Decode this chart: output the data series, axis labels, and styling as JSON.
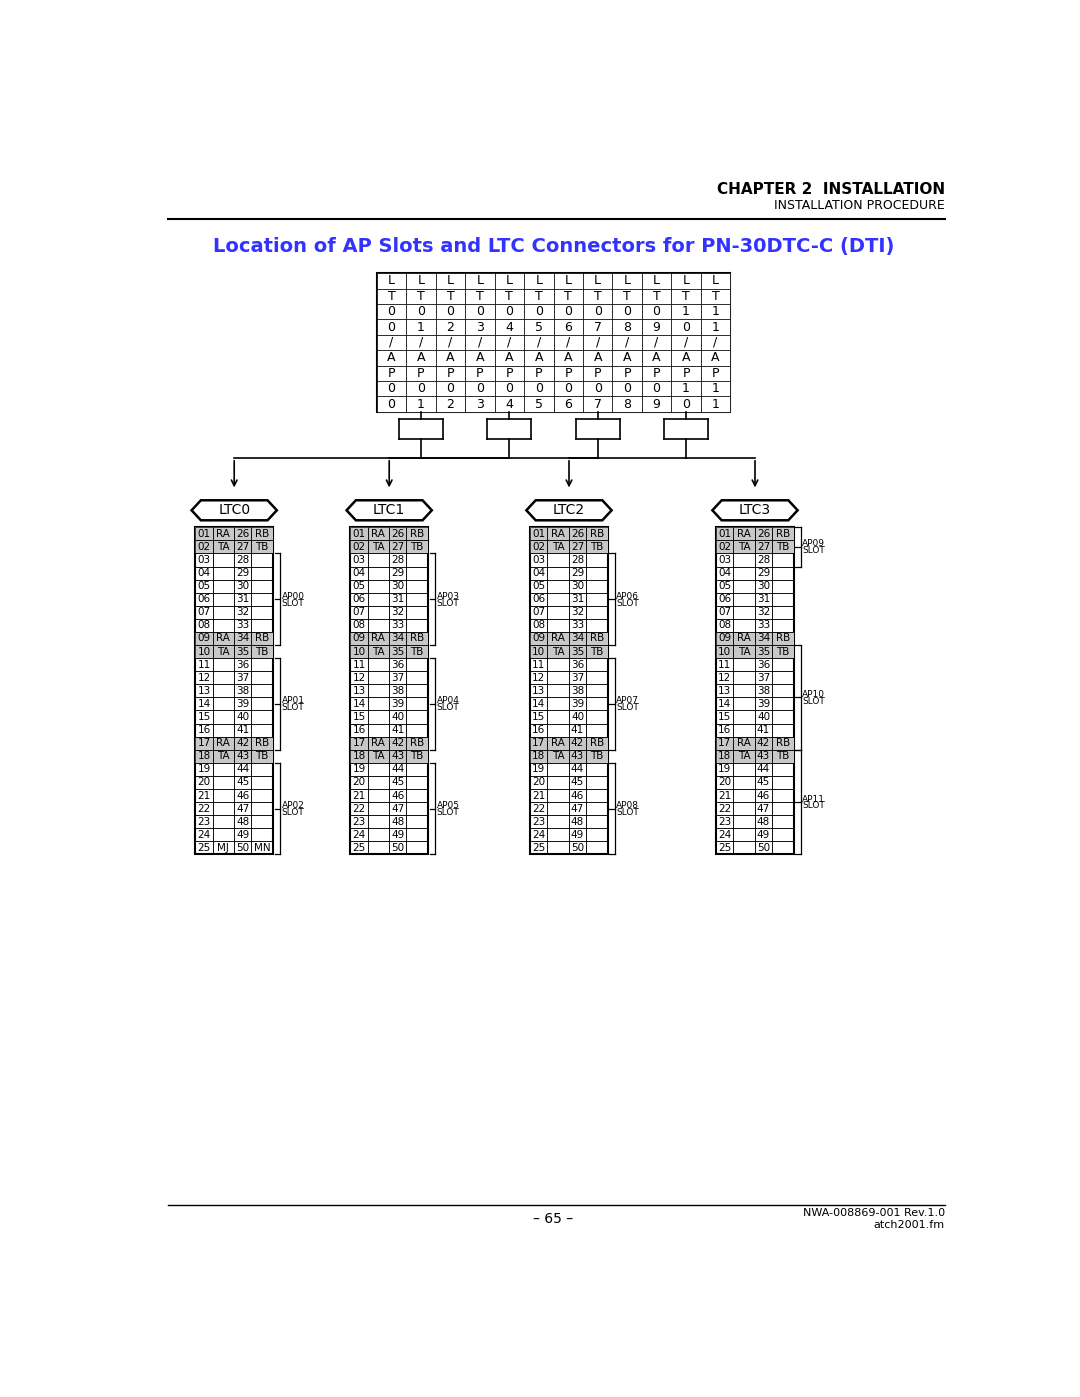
{
  "title": "Location of AP Slots and LTC Connectors for PN-30DTC-C (DTI)",
  "chapter_header": "CHAPTER 2  INSTALLATION",
  "chapter_sub": "INSTALLATION PROCEDURE",
  "footer_left": "– 65 –",
  "footer_right1": "NWA-008869-001 Rev.1.0",
  "footer_right2": "atch2001.fm",
  "top_table_col_labels": [
    [
      "L",
      "T",
      "0",
      "0",
      "/",
      "A",
      "P",
      "0",
      "0"
    ],
    [
      "L",
      "T",
      "0",
      "1",
      "/",
      "A",
      "P",
      "0",
      "1"
    ],
    [
      "L",
      "T",
      "0",
      "2",
      "/",
      "A",
      "P",
      "0",
      "2"
    ],
    [
      "L",
      "T",
      "0",
      "3",
      "/",
      "A",
      "P",
      "0",
      "3"
    ],
    [
      "L",
      "T",
      "0",
      "4",
      "/",
      "A",
      "P",
      "0",
      "4"
    ],
    [
      "L",
      "T",
      "0",
      "5",
      "/",
      "A",
      "P",
      "0",
      "5"
    ],
    [
      "L",
      "T",
      "0",
      "6",
      "/",
      "A",
      "P",
      "0",
      "6"
    ],
    [
      "L",
      "T",
      "0",
      "7",
      "/",
      "A",
      "P",
      "0",
      "7"
    ],
    [
      "L",
      "T",
      "0",
      "8",
      "/",
      "A",
      "P",
      "0",
      "8"
    ],
    [
      "L",
      "T",
      "0",
      "9",
      "/",
      "A",
      "P",
      "0",
      "9"
    ],
    [
      "L",
      "T",
      "1",
      "0",
      "/",
      "A",
      "P",
      "1",
      "0"
    ],
    [
      "L",
      "T",
      "1",
      "1",
      "/",
      "A",
      "P",
      "1",
      "1"
    ]
  ],
  "ltc_labels": [
    "LTC0",
    "LTC1",
    "LTC2",
    "LTC3"
  ],
  "table_rows_ltc0": [
    [
      "01",
      "RA",
      "26",
      "RB"
    ],
    [
      "02",
      "TA",
      "27",
      "TB"
    ],
    [
      "03",
      "",
      "28",
      ""
    ],
    [
      "04",
      "",
      "29",
      ""
    ],
    [
      "05",
      "",
      "30",
      ""
    ],
    [
      "06",
      "",
      "31",
      ""
    ],
    [
      "07",
      "",
      "32",
      ""
    ],
    [
      "08",
      "",
      "33",
      ""
    ],
    [
      "09",
      "RA",
      "34",
      "RB"
    ],
    [
      "10",
      "TA",
      "35",
      "TB"
    ],
    [
      "11",
      "",
      "36",
      ""
    ],
    [
      "12",
      "",
      "37",
      ""
    ],
    [
      "13",
      "",
      "38",
      ""
    ],
    [
      "14",
      "",
      "39",
      ""
    ],
    [
      "15",
      "",
      "40",
      ""
    ],
    [
      "16",
      "",
      "41",
      ""
    ],
    [
      "17",
      "RA",
      "42",
      "RB"
    ],
    [
      "18",
      "TA",
      "43",
      "TB"
    ],
    [
      "19",
      "",
      "44",
      ""
    ],
    [
      "20",
      "",
      "45",
      ""
    ],
    [
      "21",
      "",
      "46",
      ""
    ],
    [
      "22",
      "",
      "47",
      ""
    ],
    [
      "23",
      "",
      "48",
      ""
    ],
    [
      "24",
      "",
      "49",
      ""
    ],
    [
      "25",
      "MJ",
      "50",
      "MN"
    ]
  ],
  "table_rows_ltc123": [
    [
      "01",
      "RA",
      "26",
      "RB"
    ],
    [
      "02",
      "TA",
      "27",
      "TB"
    ],
    [
      "03",
      "",
      "28",
      ""
    ],
    [
      "04",
      "",
      "29",
      ""
    ],
    [
      "05",
      "",
      "30",
      ""
    ],
    [
      "06",
      "",
      "31",
      ""
    ],
    [
      "07",
      "",
      "32",
      ""
    ],
    [
      "08",
      "",
      "33",
      ""
    ],
    [
      "09",
      "RA",
      "34",
      "RB"
    ],
    [
      "10",
      "TA",
      "35",
      "TB"
    ],
    [
      "11",
      "",
      "36",
      ""
    ],
    [
      "12",
      "",
      "37",
      ""
    ],
    [
      "13",
      "",
      "38",
      ""
    ],
    [
      "14",
      "",
      "39",
      ""
    ],
    [
      "15",
      "",
      "40",
      ""
    ],
    [
      "16",
      "",
      "41",
      ""
    ],
    [
      "17",
      "RA",
      "42",
      "RB"
    ],
    [
      "18",
      "TA",
      "43",
      "TB"
    ],
    [
      "19",
      "",
      "44",
      ""
    ],
    [
      "20",
      "",
      "45",
      ""
    ],
    [
      "21",
      "",
      "46",
      ""
    ],
    [
      "22",
      "",
      "47",
      ""
    ],
    [
      "23",
      "",
      "48",
      ""
    ],
    [
      "24",
      "",
      "49",
      ""
    ],
    [
      "25",
      "",
      "50",
      ""
    ]
  ],
  "ap_defs": [
    [
      [
        "AP00",
        "SLOT",
        2,
        8
      ],
      [
        "AP01",
        "SLOT",
        10,
        16
      ],
      [
        "AP02",
        "SLOT",
        18,
        24
      ]
    ],
    [
      [
        "AP03",
        "SLOT",
        2,
        8
      ],
      [
        "AP04",
        "SLOT",
        10,
        16
      ],
      [
        "AP05",
        "SLOT",
        18,
        24
      ]
    ],
    [
      [
        "AP06",
        "SLOT",
        2,
        8
      ],
      [
        "AP07",
        "SLOT",
        10,
        16
      ],
      [
        "AP08",
        "SLOT",
        18,
        24
      ]
    ],
    [
      [
        "AP09",
        "SLOT",
        0,
        2
      ],
      [
        "AP10",
        "SLOT",
        9,
        16
      ],
      [
        "AP11",
        "SLOT",
        17,
        24
      ]
    ]
  ],
  "bg_color": "#ffffff",
  "title_color": "#3333ff",
  "gray_color": "#c8c8c8"
}
